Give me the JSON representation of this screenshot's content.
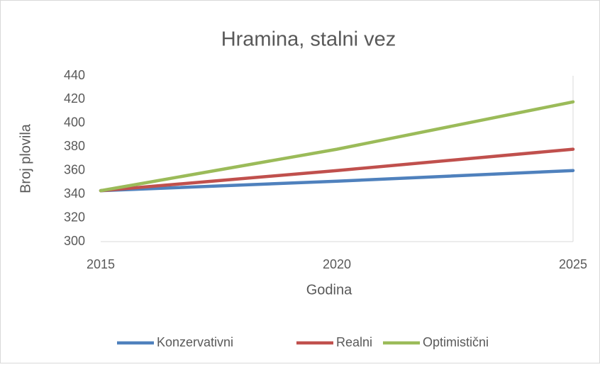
{
  "chart_data": {
    "type": "line",
    "title": "Hramina, stalni vez",
    "x": [
      2015,
      2020,
      2025
    ],
    "series": [
      {
        "name": "Konzervativni",
        "color": "#4f81bd",
        "values": [
          343,
          351,
          360
        ]
      },
      {
        "name": "Realni",
        "color": "#c0504d",
        "values": [
          343,
          360,
          378
        ]
      },
      {
        "name": "Optimistični",
        "color": "#9bbb59",
        "values": [
          343,
          378,
          418
        ]
      }
    ],
    "xlabel": "Godina",
    "ylabel": "Broj plovila",
    "xlim": [
      2015,
      2025
    ],
    "xticks": [
      2015,
      2020,
      2025
    ],
    "ylim": [
      300,
      440
    ],
    "yticks": [
      300,
      320,
      340,
      360,
      380,
      400,
      420,
      440
    ],
    "grid": false,
    "legend": "bottom"
  }
}
